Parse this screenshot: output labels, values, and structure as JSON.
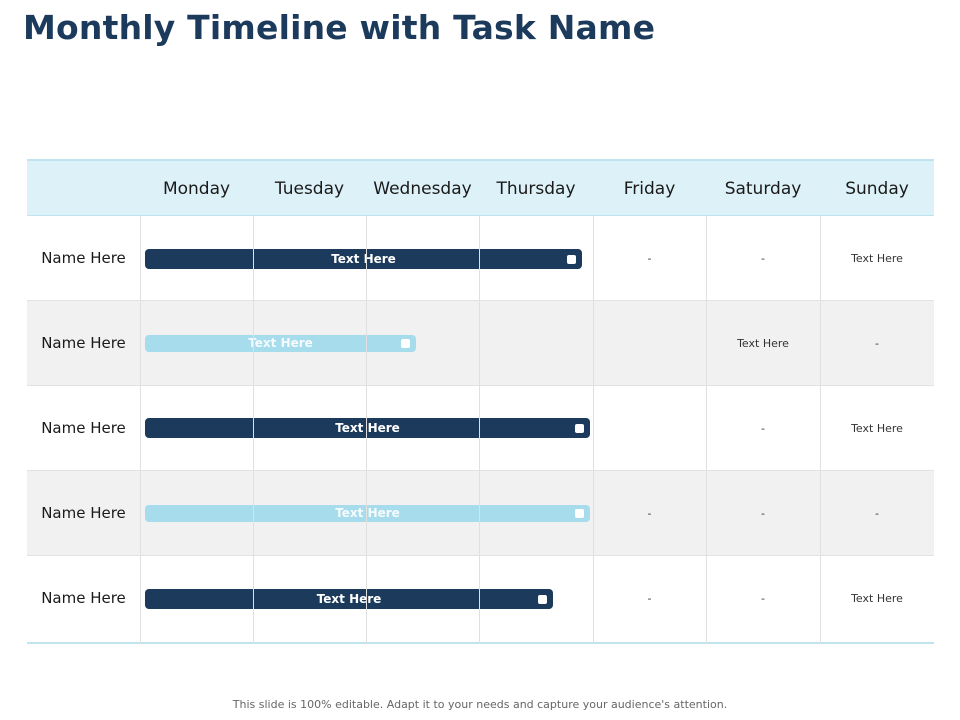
{
  "title": "Monthly Timeline with Task Name",
  "days": [
    "Monday",
    "Tuesday",
    "Wednesday",
    "Thursday",
    "Friday",
    "Saturday",
    "Sunday"
  ],
  "rows": [
    {
      "name": "Name Here",
      "bar_label": "Text Here",
      "bar_style": "dark",
      "friday": "-",
      "saturday": "-",
      "sunday": "Text Here"
    },
    {
      "name": "Name Here",
      "bar_label": "Text Here",
      "bar_style": "light",
      "friday": "",
      "saturday": "Text Here",
      "sunday": "-"
    },
    {
      "name": "Name Here",
      "bar_label": "Text Here",
      "bar_style": "dark",
      "friday": "",
      "saturday": "-",
      "sunday": "Text Here"
    },
    {
      "name": "Name Here",
      "bar_label": "Text Here",
      "bar_style": "light",
      "friday": "-",
      "saturday": "-",
      "sunday": "-"
    },
    {
      "name": "Name Here",
      "bar_label": "Text Here",
      "bar_style": "dark",
      "friday": "-",
      "saturday": "-",
      "sunday": "Text Here"
    }
  ],
  "footer": "This slide is 100% editable. Adapt it to your needs and capture your audience's attention.",
  "colors": {
    "dark_bar": "#1b3a5c",
    "light_bar": "#a6dcec",
    "header_bg": "#ddf1f8",
    "title": "#1b3a5c"
  }
}
